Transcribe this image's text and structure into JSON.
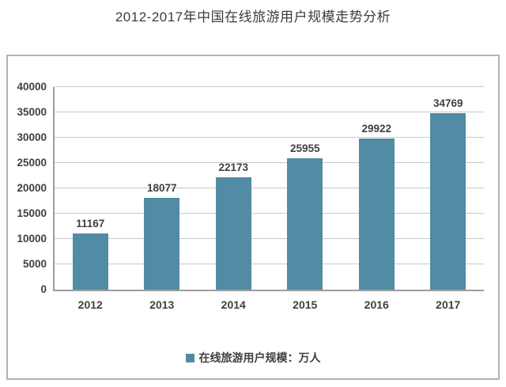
{
  "title": "2012-2017年中国在线旅游用户规模走势分析",
  "chart_data": {
    "type": "bar",
    "title": "2012-2017年中国在线旅游用户规模走势分析",
    "categories": [
      "2012",
      "2013",
      "2014",
      "2015",
      "2016",
      "2017"
    ],
    "values": [
      11167,
      18077,
      22173,
      25955,
      29922,
      34769
    ],
    "legend": "在线旅游用户规模：万人",
    "xlabel": "",
    "ylabel": "",
    "ylim": [
      0,
      40000
    ],
    "yticks": [
      0,
      5000,
      10000,
      15000,
      20000,
      25000,
      30000,
      35000,
      40000
    ],
    "grid": "horizontal",
    "legend_position": "bottom",
    "value_labels_shown": true
  },
  "colors": {
    "bar": "#528BA4",
    "gridline": "#c9c9c9",
    "axis": "#9d9d9d",
    "text": "#404040",
    "frame_border": "#b3b3b3",
    "background": "#ffffff"
  }
}
